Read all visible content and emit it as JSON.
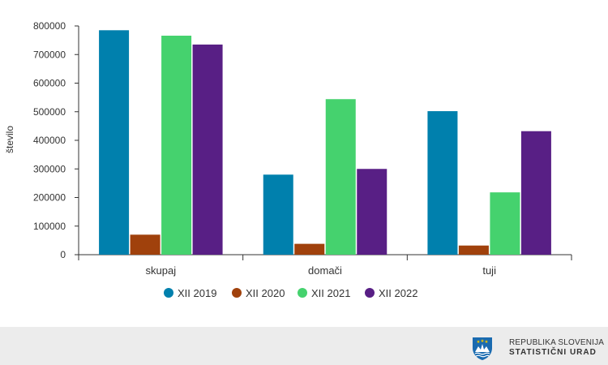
{
  "chart_data": {
    "type": "bar",
    "categories": [
      "skupaj",
      "domači",
      "tuji"
    ],
    "series": [
      {
        "name": "XII 2019",
        "color": "#0080ad",
        "values": [
          785000,
          280000,
          502000
        ]
      },
      {
        "name": "XII 2020",
        "color": "#a0410c",
        "values": [
          70000,
          38000,
          32000
        ]
      },
      {
        "name": "XII 2021",
        "color": "#45d26e",
        "values": [
          766000,
          544000,
          218000
        ]
      },
      {
        "name": "XII 2022",
        "color": "#581f85",
        "values": [
          735000,
          300000,
          432000
        ]
      }
    ],
    "ylabel": "število",
    "ylim": [
      0,
      800000
    ],
    "yticks": [
      "0",
      "100000",
      "200000",
      "300000",
      "400000",
      "500000",
      "600000",
      "700000",
      "800000"
    ],
    "legend_position": "bottom",
    "grid": false
  },
  "footer": {
    "line1": "REPUBLIKA SLOVENIJA",
    "line2": "STATISTIČNI URAD",
    "logo_icon": "slovenia-coat-of-arms-icon"
  }
}
